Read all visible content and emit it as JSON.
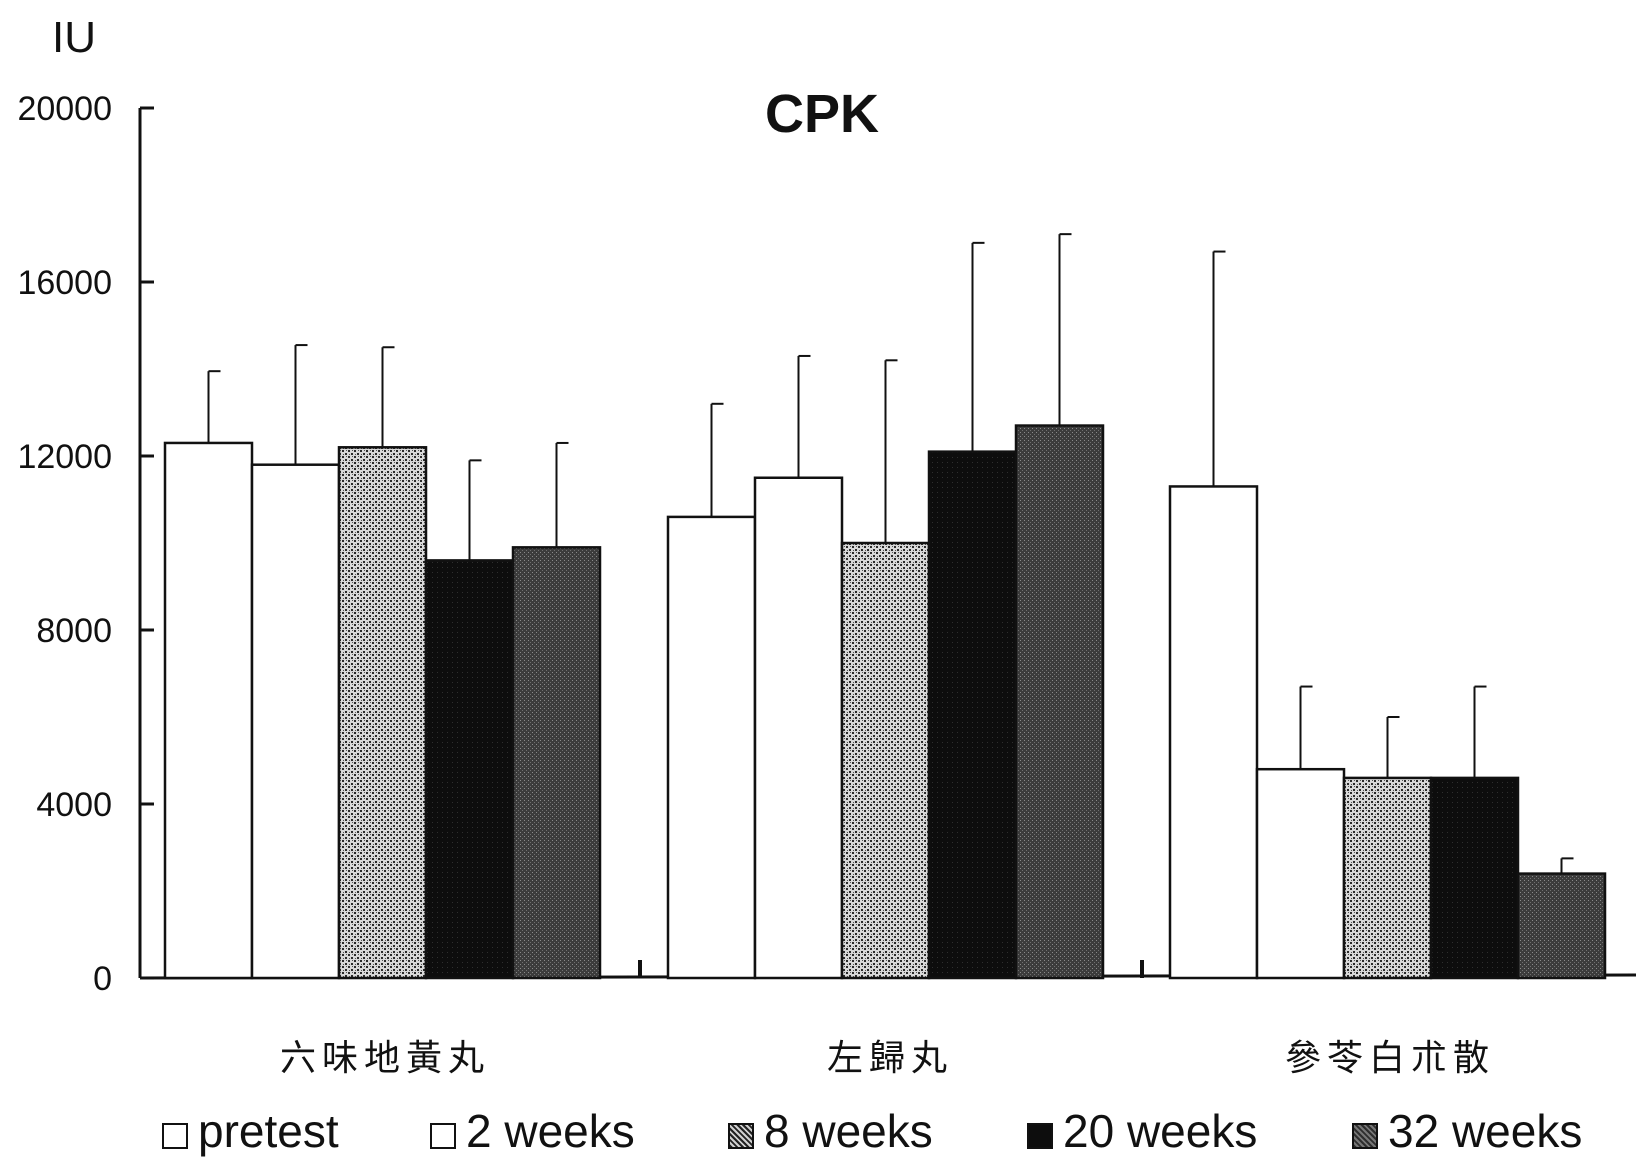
{
  "chart_data": {
    "type": "bar",
    "title": "CPK",
    "ylabel": "IU",
    "xlabel": "",
    "ylim": [
      0,
      20000
    ],
    "yticks": [
      "0",
      "4000",
      "8000",
      "12000",
      "16000",
      "20000"
    ],
    "categories": [
      "六味地黃丸",
      "左歸丸",
      "參苓白朮散"
    ],
    "series": [
      {
        "name": "pretest",
        "values": [
          12300,
          10600,
          11300
        ],
        "errors": [
          1650,
          2600,
          5400
        ],
        "color": "#ffffff"
      },
      {
        "name": "2 weeks",
        "values": [
          11800,
          11500,
          4800
        ],
        "errors": [
          2750,
          2800,
          1900
        ],
        "color": "#ffffff"
      },
      {
        "name": "8 weeks",
        "values": [
          12200,
          10000,
          4600
        ],
        "errors": [
          2300,
          4200,
          1400
        ],
        "color": "#8a8a8a"
      },
      {
        "name": "20 weeks",
        "values": [
          9600,
          12100,
          4600
        ],
        "errors": [
          2300,
          4800,
          2100
        ],
        "color": "#111111"
      },
      {
        "name": "32 weeks",
        "values": [
          9900,
          12700,
          2400
        ],
        "errors": [
          2400,
          4400,
          350
        ],
        "color": "#4a4a4a"
      }
    ],
    "grid": false,
    "legend_position": "bottom"
  }
}
